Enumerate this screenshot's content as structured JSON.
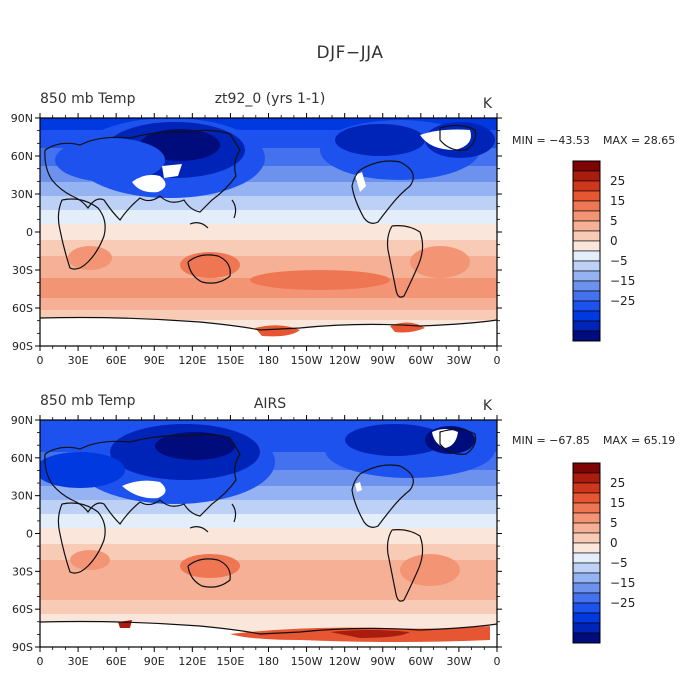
{
  "title": "DJF−JJA",
  "longitude_ticks": [
    "0",
    "30E",
    "60E",
    "90E",
    "120E",
    "150E",
    "180",
    "150W",
    "120W",
    "90W",
    "60W",
    "30W",
    "0"
  ],
  "latitude_ticks": [
    "90N",
    "60N",
    "30N",
    "0",
    "30S",
    "60S",
    "90S"
  ],
  "colorbar": {
    "colors": [
      "#000c7c",
      "#0024b8",
      "#0039e0",
      "#1d52ee",
      "#4472ee",
      "#6d92ee",
      "#95b2f2",
      "#bdd0f6",
      "#e4eefa",
      "#fbe6dc",
      "#f7cbb6",
      "#f5b095",
      "#f39474",
      "#ef7652",
      "#e65632",
      "#cf361e",
      "#a91c0e",
      "#7d0404"
    ],
    "labels": [
      "25",
      "15",
      "5",
      "0",
      "−5",
      "−15",
      "−25"
    ]
  },
  "panels": [
    {
      "left_label": "850 mb Temp",
      "center_label": "zt92_0 (yrs 1-1)",
      "units": "K",
      "min_text": "MIN = −43.53",
      "max_text": "MAX =  28.65"
    },
    {
      "left_label": "850 mb Temp",
      "center_label": "AIRS",
      "units": "K",
      "min_text": "MIN = −67.85",
      "max_text": "MAX =  65.19"
    }
  ]
}
